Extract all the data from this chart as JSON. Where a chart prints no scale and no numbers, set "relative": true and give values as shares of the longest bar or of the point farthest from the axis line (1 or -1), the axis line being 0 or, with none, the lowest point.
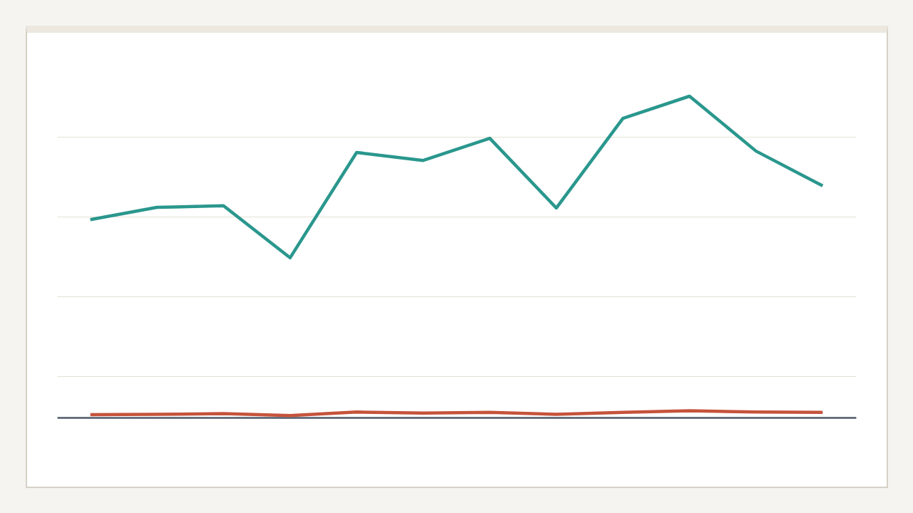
{
  "chart_data": {
    "type": "line",
    "relative": true,
    "categories": [
      null,
      null,
      null,
      null,
      null,
      null,
      null,
      null,
      null,
      null,
      null,
      null
    ],
    "series": [
      {
        "color": "#2a978d",
        "values": [
          0.616,
          0.654,
          0.659,
          0.497,
          0.825,
          0.8,
          0.869,
          0.652,
          0.931,
          1,
          0.829,
          0.721
        ]
      },
      {
        "color": "#c5533b",
        "values": [
          0.009,
          0.01,
          0.012,
          0.006,
          0.017,
          0.014,
          0.016,
          0.01,
          0.016,
          0.021,
          0.017,
          0.016
        ]
      }
    ],
    "grid": true
  }
}
